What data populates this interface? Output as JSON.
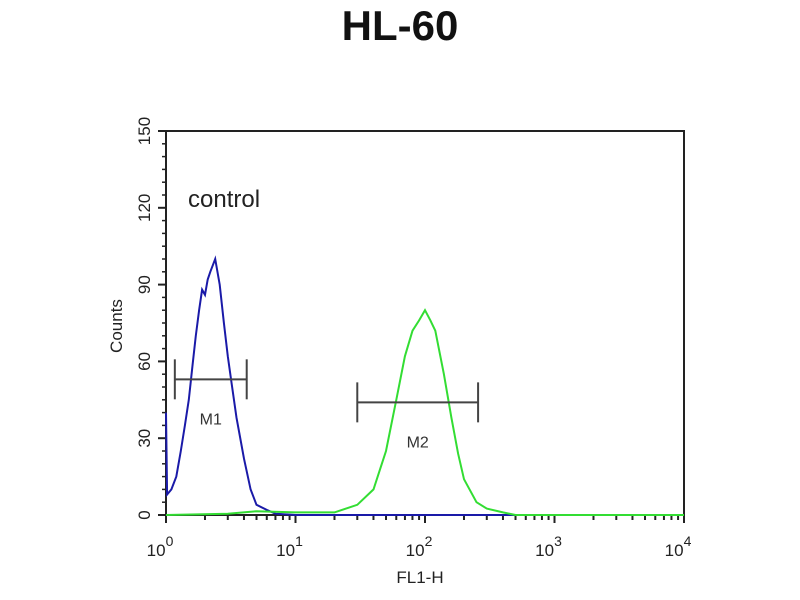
{
  "chart_data": {
    "type": "line",
    "title": "HL-60",
    "xlabel": "FL1-H",
    "ylabel": "Counts",
    "x_scale": "log",
    "xlim": [
      1,
      10000
    ],
    "ylim": [
      0,
      150
    ],
    "x_ticks": [
      {
        "value": 1,
        "base": "10",
        "exp": "0"
      },
      {
        "value": 10,
        "base": "10",
        "exp": "1"
      },
      {
        "value": 100,
        "base": "10",
        "exp": "2"
      },
      {
        "value": 1000,
        "base": "10",
        "exp": "3"
      },
      {
        "value": 10000,
        "base": "10",
        "exp": "4"
      }
    ],
    "y_ticks": [
      "0",
      "30",
      "60",
      "90",
      "120",
      "150"
    ],
    "grid": false,
    "annotation": "control",
    "markers": [
      {
        "label": "M1",
        "x_range": [
          1.17,
          4.2
        ],
        "y": 53
      },
      {
        "label": "M2",
        "x_range": [
          30,
          257
        ],
        "y": 44
      }
    ],
    "series": [
      {
        "color": "#1a1aa8",
        "points": [
          [
            1.0,
            40
          ],
          [
            1.02,
            8
          ],
          [
            1.1,
            10
          ],
          [
            1.2,
            15
          ],
          [
            1.3,
            25
          ],
          [
            1.4,
            35
          ],
          [
            1.5,
            45
          ],
          [
            1.6,
            58
          ],
          [
            1.7,
            70
          ],
          [
            1.8,
            80
          ],
          [
            1.9,
            88
          ],
          [
            2.0,
            86
          ],
          [
            2.1,
            92
          ],
          [
            2.2,
            95
          ],
          [
            2.4,
            100
          ],
          [
            2.6,
            90
          ],
          [
            2.8,
            75
          ],
          [
            3.0,
            62
          ],
          [
            3.2,
            52
          ],
          [
            3.5,
            38
          ],
          [
            4.0,
            22
          ],
          [
            4.5,
            10
          ],
          [
            5.0,
            4
          ],
          [
            6.0,
            2
          ],
          [
            7.0,
            0.5
          ],
          [
            10,
            0
          ],
          [
            10000,
            0
          ]
        ]
      },
      {
        "color": "#33dd33",
        "points": [
          [
            1,
            0
          ],
          [
            3,
            0.5
          ],
          [
            5,
            1.5
          ],
          [
            10,
            1
          ],
          [
            20,
            1
          ],
          [
            30,
            4
          ],
          [
            40,
            10
          ],
          [
            50,
            25
          ],
          [
            60,
            45
          ],
          [
            70,
            62
          ],
          [
            80,
            72
          ],
          [
            90,
            76
          ],
          [
            100,
            80
          ],
          [
            110,
            76
          ],
          [
            120,
            72
          ],
          [
            140,
            55
          ],
          [
            160,
            38
          ],
          [
            180,
            24
          ],
          [
            200,
            14
          ],
          [
            250,
            5
          ],
          [
            300,
            2.5
          ],
          [
            400,
            1
          ],
          [
            500,
            0
          ],
          [
            10000,
            0
          ]
        ]
      }
    ]
  }
}
